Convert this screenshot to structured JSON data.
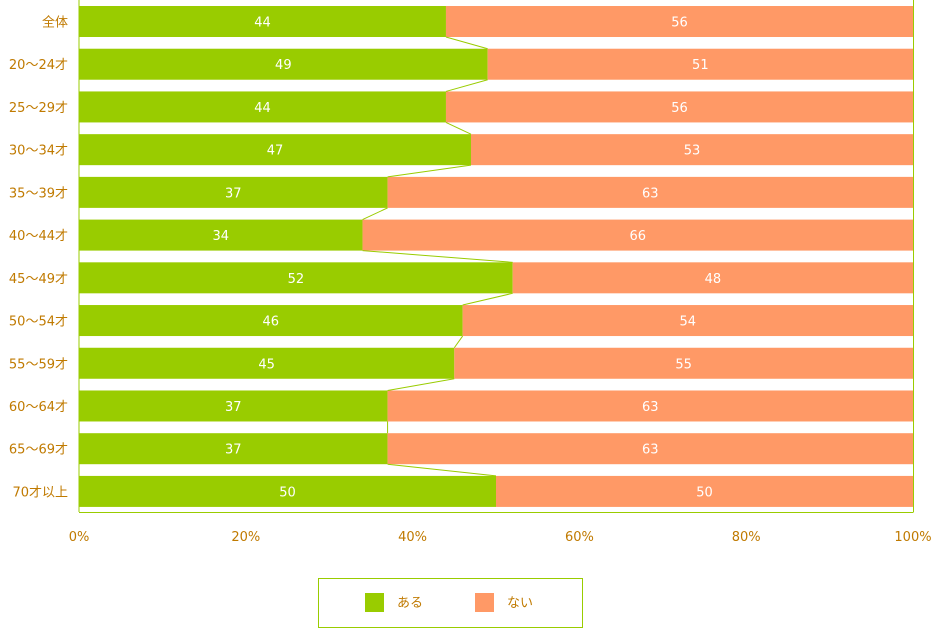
{
  "chart_data": {
    "type": "bar",
    "orientation": "horizontal",
    "stacked": true,
    "percent_scale": true,
    "categories": [
      "全体",
      "20～24才",
      "25～29才",
      "30～34才",
      "35～39才",
      "40～44才",
      "45～49才",
      "50～54才",
      "55～59才",
      "60～64才",
      "65～69才",
      "70才以上"
    ],
    "series": [
      {
        "name": "ある",
        "values": [
          44,
          49,
          44,
          47,
          37,
          34,
          52,
          46,
          45,
          37,
          37,
          50
        ],
        "color": "#99cc00"
      },
      {
        "name": "ない",
        "values": [
          56,
          51,
          56,
          53,
          63,
          66,
          48,
          54,
          55,
          63,
          63,
          50
        ],
        "color": "#ff9966"
      }
    ],
    "xlim": [
      0,
      100
    ],
    "xticks": [
      "0%",
      "20%",
      "40%",
      "60%",
      "80%",
      "100%"
    ],
    "legend_position": "bottom-center",
    "colors": {
      "label": "#c07a00",
      "frame": "#99cc00",
      "connector": "#99cc00"
    }
  }
}
